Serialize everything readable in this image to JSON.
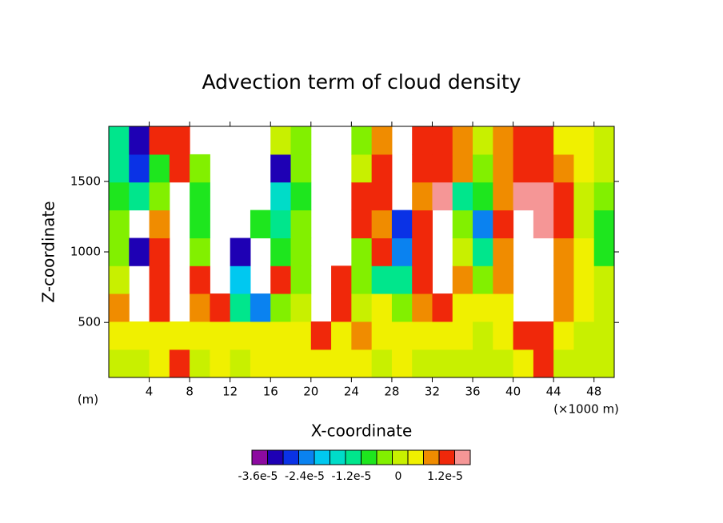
{
  "chart_data": {
    "type": "contour",
    "title": "Advection term of cloud density",
    "x_label": "X-coordinate",
    "y_label": "Z-coordinate",
    "x_unit": "(×1000 m)",
    "y_unit": "(m)",
    "xlim": [
      0,
      50
    ],
    "ylim": [
      110,
      1890
    ],
    "xticks": [
      4,
      8,
      12,
      16,
      20,
      24,
      28,
      32,
      36,
      40,
      44,
      48
    ],
    "yticks": [
      500,
      1000,
      1500
    ],
    "x": [
      1,
      3,
      5,
      7,
      9,
      11,
      13,
      15,
      17,
      19,
      21,
      23,
      25,
      27,
      29,
      31,
      33,
      35,
      37,
      39,
      41,
      43,
      45,
      47,
      49
    ],
    "y": [
      210,
      408,
      606,
      804,
      1000,
      1198,
      1396,
      1594,
      1790
    ],
    "z": [
      [
        -2e-06,
        2e-06,
        6e-06,
        -2e-06,
        -6e-06,
        -6e-06,
        -1e-05,
        -1.4e-05,
        -1.4e-05
      ],
      [
        -2e-06,
        2e-06,
        null,
        null,
        -3.4e-05,
        null,
        -1.4e-05,
        -3e-05,
        -3.4e-05
      ],
      [
        2e-06,
        2e-06,
        1e-05,
        1e-05,
        1e-05,
        6e-06,
        -6e-06,
        -1e-05,
        1e-05
      ],
      [
        1e-05,
        2e-06,
        null,
        null,
        null,
        null,
        null,
        1e-05,
        1e-05
      ],
      [
        -2e-06,
        2e-06,
        6e-06,
        1e-05,
        -6e-06,
        -1e-05,
        -1e-05,
        -6e-06,
        null
      ],
      [
        2e-06,
        2e-06,
        1e-05,
        null,
        null,
        null,
        null,
        null,
        null
      ],
      [
        -2e-06,
        2e-06,
        -1.4e-05,
        -2.2e-05,
        -3.4e-05,
        null,
        null,
        null,
        null
      ],
      [
        2e-06,
        2e-06,
        -2.6e-05,
        null,
        null,
        -1e-05,
        null,
        null,
        null
      ],
      [
        2e-06,
        2e-06,
        -6e-06,
        1e-05,
        -1e-05,
        -1.4e-05,
        -1.8e-05,
        -3.4e-05,
        -2e-06
      ],
      [
        2e-06,
        2e-06,
        -2e-06,
        -6e-06,
        -6e-06,
        -6e-06,
        -1e-05,
        -6e-06,
        -6e-06
      ],
      [
        2e-06,
        1e-05,
        null,
        null,
        null,
        null,
        null,
        null,
        null
      ],
      [
        2e-06,
        2e-06,
        1e-05,
        1e-05,
        null,
        null,
        null,
        null,
        null
      ],
      [
        2e-06,
        6e-06,
        -2e-06,
        -6e-06,
        -6e-06,
        1e-05,
        1e-05,
        -2e-06,
        -6e-06
      ],
      [
        -2e-06,
        2e-06,
        2e-06,
        -1.4e-05,
        1e-05,
        6e-06,
        1e-05,
        1e-05,
        6e-06
      ],
      [
        2e-06,
        2e-06,
        -6e-06,
        -1.4e-05,
        -2.6e-05,
        -3e-05,
        null,
        null,
        null
      ],
      [
        -2e-06,
        2e-06,
        6e-06,
        1e-05,
        1e-05,
        1e-05,
        6e-06,
        1e-05,
        1e-05
      ],
      [
        -2e-06,
        2e-06,
        1e-05,
        null,
        null,
        null,
        1.4e-05,
        1e-05,
        1e-05
      ],
      [
        -2e-06,
        2e-06,
        2e-06,
        6e-06,
        -2e-06,
        -6e-06,
        -1.4e-05,
        6e-06,
        6e-06
      ],
      [
        -2e-06,
        -2e-06,
        2e-06,
        -6e-06,
        -1.4e-05,
        -2.6e-05,
        -1e-05,
        -6e-06,
        -2e-06
      ],
      [
        -2e-06,
        2e-06,
        2e-06,
        6e-06,
        6e-06,
        1e-05,
        6e-06,
        6e-06,
        6e-06
      ],
      [
        2e-06,
        1e-05,
        null,
        null,
        null,
        null,
        1.4e-05,
        1e-05,
        1e-05
      ],
      [
        1e-05,
        1e-05,
        null,
        null,
        null,
        1.4e-05,
        1.4e-05,
        1e-05,
        1e-05
      ],
      [
        -2e-06,
        2e-06,
        6e-06,
        6e-06,
        6e-06,
        1e-05,
        1e-05,
        6e-06,
        2e-06
      ],
      [
        -2e-06,
        -2e-06,
        2e-06,
        2e-06,
        2e-06,
        -2e-06,
        -2e-06,
        2e-06,
        2e-06
      ],
      [
        -2e-06,
        -2e-06,
        -2e-06,
        -2e-06,
        -1e-05,
        -1e-05,
        -6e-06,
        -2e-06,
        -2e-06
      ]
    ],
    "colorbar": {
      "levels": [
        -3.6e-05,
        -3.2e-05,
        -2.8e-05,
        -2.4e-05,
        -2e-05,
        -1.6e-05,
        -1.2e-05,
        -8e-06,
        -4e-06,
        0,
        4e-06,
        8e-06,
        1.2e-05
      ],
      "colors": [
        "#8c0aa0",
        "#1e00b4",
        "#0a32e6",
        "#0a82f0",
        "#00c8f0",
        "#00dcc8",
        "#00e68c",
        "#1ee61e",
        "#82f000",
        "#c8f000",
        "#f0f000",
        "#f08c00",
        "#f0280a",
        "#f59696"
      ],
      "ticks": [
        {
          "value": -3.6e-05,
          "label": "-3.6e-5"
        },
        {
          "value": -2.4e-05,
          "label": "-2.4e-5"
        },
        {
          "value": -1.2e-05,
          "label": "-1.2e-5"
        },
        0,
        {
          "value": 1.2e-05,
          "label": "1.2e-5"
        }
      ]
    }
  }
}
